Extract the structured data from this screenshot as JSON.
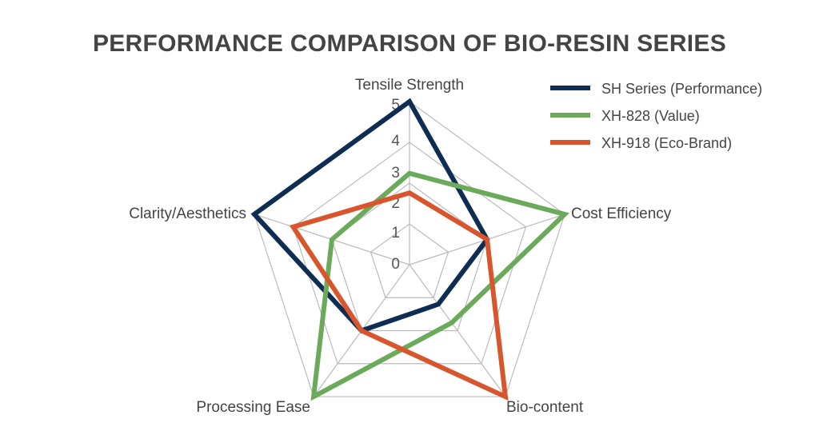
{
  "chart_data": {
    "type": "radar",
    "title": "PERFORMANCE COMPARISON OF BIO-RESIN SERIES",
    "axes": [
      "Tensile Strength",
      "Cost Efficiency",
      "Bio-content",
      "Processing Ease",
      "Clarity/Aesthetics"
    ],
    "range": [
      0,
      5
    ],
    "ticks": [
      "0",
      "1",
      "2",
      "3",
      "4",
      "5"
    ],
    "grid": true,
    "legend_position": "top-right",
    "series": [
      {
        "name": "SH Series (Performance)",
        "color": "#0f2d52",
        "values": [
          5,
          2.5,
          1.5,
          2.5,
          5
        ]
      },
      {
        "name": "XH-828 (Value)",
        "color": "#6aaa5a",
        "values": [
          2.8,
          5,
          2.2,
          5,
          2.5
        ]
      },
      {
        "name": "XH-918 (Eco-Brand)",
        "color": "#d9552e",
        "values": [
          2.2,
          2.5,
          5,
          2.5,
          3.75
        ]
      }
    ]
  }
}
